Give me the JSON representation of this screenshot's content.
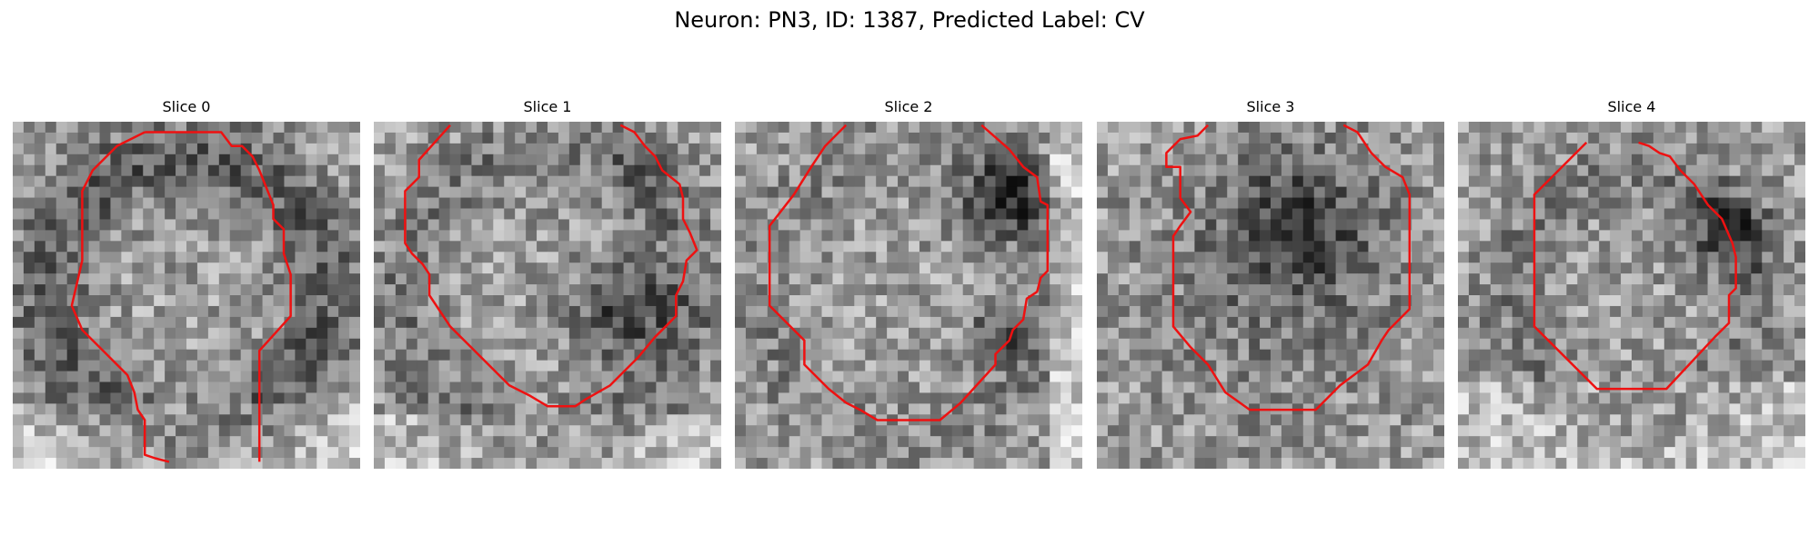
{
  "figure": {
    "title": "Neuron: PN3, ID: 1387, Predicted Label: CV"
  },
  "panels": [
    {
      "title": "Slice 0",
      "image": "grayscale microscopy patch with red outline",
      "outline": [
        [
          0.38,
          0.03
        ],
        [
          0.6,
          0.03
        ],
        [
          0.63,
          0.07
        ],
        [
          0.66,
          0.07
        ],
        [
          0.69,
          0.1
        ],
        [
          0.71,
          0.14
        ],
        [
          0.75,
          0.24
        ],
        [
          0.75,
          0.28
        ],
        [
          0.78,
          0.31
        ],
        [
          0.78,
          0.38
        ],
        [
          0.8,
          0.44
        ],
        [
          0.8,
          0.56
        ],
        [
          0.71,
          0.66
        ],
        [
          0.71,
          0.98
        ]
      ],
      "outline2": [
        [
          0.38,
          0.03
        ],
        [
          0.3,
          0.07
        ],
        [
          0.23,
          0.14
        ],
        [
          0.2,
          0.2
        ],
        [
          0.2,
          0.4
        ],
        [
          0.17,
          0.53
        ],
        [
          0.2,
          0.6
        ],
        [
          0.27,
          0.67
        ],
        [
          0.33,
          0.73
        ],
        [
          0.35,
          0.78
        ],
        [
          0.36,
          0.83
        ],
        [
          0.38,
          0.86
        ],
        [
          0.38,
          0.96
        ],
        [
          0.41,
          0.97
        ],
        [
          0.45,
          0.98
        ]
      ],
      "gradient": "dark-edge"
    },
    {
      "title": "Slice 1",
      "image": "grayscale microscopy patch with red outline",
      "outline2": [
        [
          0.22,
          0.01
        ],
        [
          0.13,
          0.11
        ],
        [
          0.13,
          0.16
        ],
        [
          0.09,
          0.2
        ],
        [
          0.09,
          0.35
        ],
        [
          0.11,
          0.38
        ],
        [
          0.14,
          0.41
        ],
        [
          0.16,
          0.44
        ],
        [
          0.16,
          0.5
        ],
        [
          0.22,
          0.59
        ],
        [
          0.29,
          0.66
        ],
        [
          0.39,
          0.76
        ],
        [
          0.45,
          0.79
        ],
        [
          0.5,
          0.82
        ],
        [
          0.58,
          0.82
        ],
        [
          0.61,
          0.8
        ],
        [
          0.68,
          0.76
        ],
        [
          0.72,
          0.72
        ],
        [
          0.76,
          0.68
        ],
        [
          0.81,
          0.62
        ],
        [
          0.83,
          0.6
        ],
        [
          0.87,
          0.56
        ],
        [
          0.87,
          0.5
        ],
        [
          0.89,
          0.46
        ],
        [
          0.9,
          0.4
        ],
        [
          0.93,
          0.37
        ],
        [
          0.91,
          0.32
        ],
        [
          0.89,
          0.28
        ],
        [
          0.89,
          0.22
        ],
        [
          0.88,
          0.18
        ],
        [
          0.83,
          0.14
        ],
        [
          0.81,
          0.1
        ],
        [
          0.78,
          0.07
        ],
        [
          0.75,
          0.03
        ],
        [
          0.71,
          0.01
        ]
      ],
      "gradient": "dark-right"
    },
    {
      "title": "Slice 2",
      "image": "grayscale microscopy patch with red outline",
      "outline2": [
        [
          0.32,
          0.01
        ],
        [
          0.26,
          0.07
        ],
        [
          0.22,
          0.13
        ],
        [
          0.17,
          0.21
        ],
        [
          0.1,
          0.3
        ],
        [
          0.1,
          0.53
        ],
        [
          0.2,
          0.63
        ],
        [
          0.2,
          0.7
        ],
        [
          0.27,
          0.77
        ],
        [
          0.32,
          0.81
        ],
        [
          0.36,
          0.83
        ],
        [
          0.41,
          0.86
        ],
        [
          0.59,
          0.86
        ],
        [
          0.65,
          0.81
        ],
        [
          0.75,
          0.7
        ],
        [
          0.75,
          0.67
        ],
        [
          0.79,
          0.63
        ],
        [
          0.8,
          0.6
        ],
        [
          0.83,
          0.57
        ],
        [
          0.84,
          0.51
        ],
        [
          0.87,
          0.49
        ],
        [
          0.88,
          0.45
        ],
        [
          0.9,
          0.43
        ],
        [
          0.9,
          0.24
        ],
        [
          0.88,
          0.23
        ],
        [
          0.87,
          0.16
        ],
        [
          0.83,
          0.13
        ],
        [
          0.79,
          0.08
        ],
        [
          0.71,
          0.01
        ]
      ],
      "gradient": "dark-topright"
    },
    {
      "title": "Slice 3",
      "image": "grayscale microscopy patch with red outline",
      "outline2": [
        [
          0.32,
          0.01
        ],
        [
          0.29,
          0.04
        ],
        [
          0.24,
          0.05
        ],
        [
          0.2,
          0.09
        ],
        [
          0.2,
          0.13
        ],
        [
          0.24,
          0.13
        ],
        [
          0.24,
          0.22
        ],
        [
          0.27,
          0.26
        ],
        [
          0.24,
          0.3
        ],
        [
          0.22,
          0.33
        ],
        [
          0.22,
          0.59
        ],
        [
          0.27,
          0.65
        ],
        [
          0.32,
          0.7
        ],
        [
          0.37,
          0.78
        ],
        [
          0.44,
          0.83
        ],
        [
          0.63,
          0.83
        ],
        [
          0.7,
          0.76
        ],
        [
          0.78,
          0.7
        ],
        [
          0.82,
          0.63
        ],
        [
          0.84,
          0.6
        ],
        [
          0.9,
          0.54
        ],
        [
          0.9,
          0.21
        ],
        [
          0.88,
          0.16
        ],
        [
          0.83,
          0.13
        ],
        [
          0.79,
          0.09
        ],
        [
          0.75,
          0.03
        ],
        [
          0.71,
          0.01
        ]
      ],
      "gradient": "dark-center"
    },
    {
      "title": "Slice 4",
      "image": "grayscale microscopy patch with red outline",
      "outline2": [
        [
          0.37,
          0.06
        ],
        [
          0.22,
          0.21
        ],
        [
          0.22,
          0.59
        ],
        [
          0.4,
          0.77
        ],
        [
          0.6,
          0.77
        ],
        [
          0.74,
          0.62
        ],
        [
          0.78,
          0.58
        ],
        [
          0.78,
          0.5
        ],
        [
          0.8,
          0.48
        ],
        [
          0.8,
          0.39
        ],
        [
          0.79,
          0.35
        ],
        [
          0.76,
          0.28
        ],
        [
          0.72,
          0.24
        ],
        [
          0.68,
          0.18
        ],
        [
          0.64,
          0.14
        ],
        [
          0.61,
          0.1
        ],
        [
          0.58,
          0.09
        ],
        [
          0.55,
          0.07
        ],
        [
          0.52,
          0.06
        ]
      ],
      "gradient": "dark-top-right-arc"
    }
  ],
  "colors": {
    "outline": "#ee1111",
    "background": "#ffffff"
  }
}
